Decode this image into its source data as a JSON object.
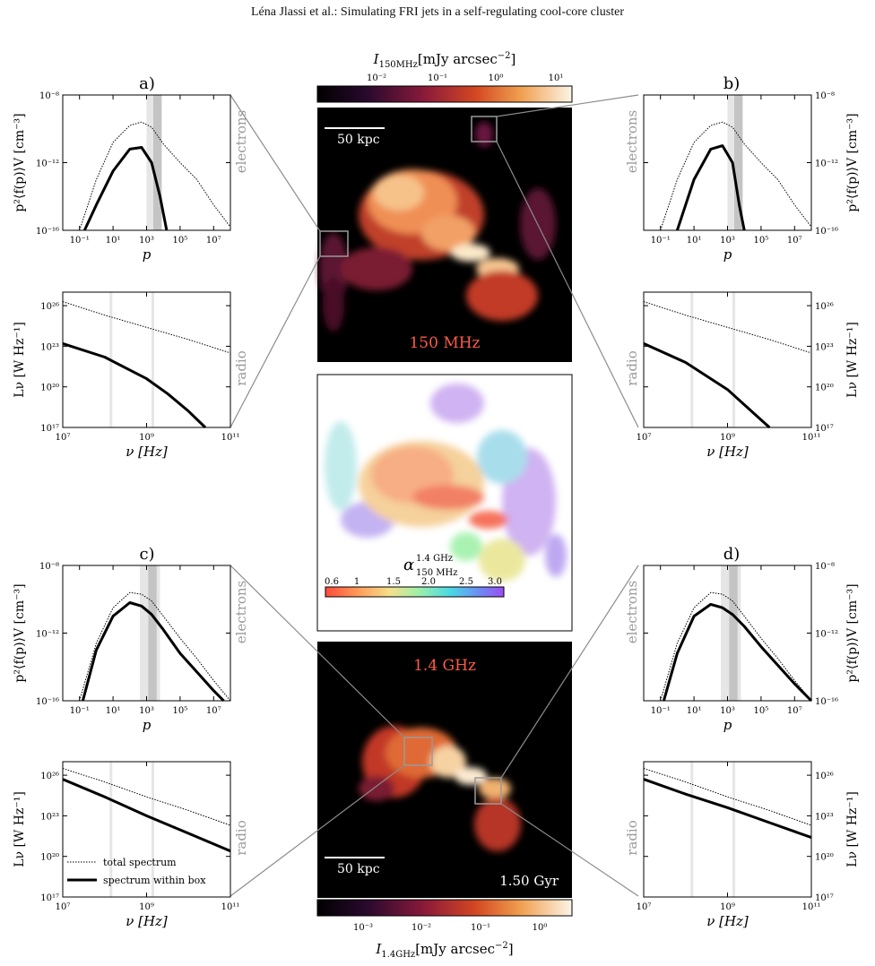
{
  "header": "Léna Jlassi et al.: Simulating FRI jets in a self-regulating cool-core cluster",
  "colorbar_top": {
    "label": "I_150MHz [mJy arcsec^-2]",
    "label_main": "I",
    "label_sub": "150MHz",
    "label_units": "[mJy arcsec",
    "label_exp": "−2",
    "label_close": "]",
    "ticks": [
      "10⁻²",
      "10⁻¹",
      "10⁰",
      "10¹"
    ]
  },
  "colorbar_bottom": {
    "label_main": "I",
    "label_sub": "1.4GHz",
    "label_units": "[mJy arcsec",
    "label_exp": "−2",
    "label_close": "]",
    "ticks": [
      "10⁻³",
      "10⁻²",
      "10⁻¹",
      "10⁰"
    ]
  },
  "center": {
    "map_top": {
      "scale_label": "50 kpc",
      "freq_label": "150 MHz"
    },
    "spectral_map": {
      "label_main": "α",
      "label_sup": "1.4 GHz",
      "label_sub": "150 MHz",
      "ticks": [
        "0.6",
        "1",
        "1.5",
        "2.0",
        "2.5",
        "3.0"
      ]
    },
    "map_bottom": {
      "scale_label": "50 kpc",
      "freq_label": "1.4 GHz",
      "time_label": "1.50 Gyr"
    }
  },
  "panels": {
    "a": {
      "letter": "a)"
    },
    "b": {
      "letter": "b)"
    },
    "c": {
      "letter": "c)"
    },
    "d": {
      "letter": "d)"
    }
  },
  "axes": {
    "electron_ylabel": "p²⟨f(p)⟩V [cm⁻³]",
    "electron_xlabel": "p",
    "electron_side": "electrons",
    "electron_yticks": [
      "10⁻⁸",
      "10⁻¹²",
      "10⁻¹⁶"
    ],
    "electron_xticks": [
      "10⁻¹",
      "10¹",
      "10³",
      "10⁵",
      "10⁷"
    ],
    "radio_ylabel": "Lν [W Hz⁻¹]",
    "radio_xlabel": "ν [Hz]",
    "radio_side": "radio",
    "radio_yticks": [
      "10²⁶",
      "10²³",
      "10²⁰",
      "10¹⁷"
    ],
    "radio_xticks": [
      "10⁷",
      "10⁹",
      "10¹¹"
    ]
  },
  "legend": {
    "total": "total spectrum",
    "box": "spectrum within box"
  },
  "colors": {
    "black_bg": "#000000",
    "curve": "#000000",
    "band_light": "#e6e6e6",
    "band_dark": "#c4c4c4",
    "connector": "#8c8c8c"
  },
  "chart_data": [
    {
      "panel": "a",
      "type": "line",
      "subplot": "electrons",
      "xlim_log10": [
        -2,
        8
      ],
      "ylim_log10": [
        -16,
        -8
      ],
      "series": [
        {
          "name": "total spectrum",
          "x_log10": [
            -1,
            0,
            1,
            2,
            2.7,
            3.3,
            4,
            5,
            6,
            7,
            8
          ],
          "y_log10": [
            -16.2,
            -13,
            -10.8,
            -9.8,
            -9.6,
            -9.9,
            -10.9,
            -12,
            -13,
            -14.5,
            -15.8
          ]
        },
        {
          "name": "spectrum within box",
          "x_log10": [
            -0.7,
            0,
            1,
            2,
            2.7,
            3.3,
            3.8,
            4.2
          ],
          "y_log10": [
            -16.2,
            -14.5,
            -12.5,
            -11.2,
            -11.1,
            -12.0,
            -14.0,
            -16.2
          ]
        }
      ],
      "bands_log10": [
        [
          3.0,
          3.9
        ],
        [
          3.4,
          3.9
        ]
      ]
    },
    {
      "panel": "a",
      "type": "line",
      "subplot": "radio",
      "xlim_log10": [
        7,
        11
      ],
      "ylim_log10": [
        17,
        27
      ],
      "series": [
        {
          "name": "total spectrum",
          "x_log10": [
            7,
            8,
            9,
            10,
            11
          ],
          "y_log10": [
            26.3,
            25.3,
            24.4,
            23.5,
            22.5
          ]
        },
        {
          "name": "spectrum within box",
          "x_log10": [
            7,
            8,
            9,
            9.5,
            10,
            10.4
          ],
          "y_log10": [
            23.2,
            22.2,
            20.6,
            19.5,
            18.2,
            17
          ]
        }
      ],
      "bands_log10": [
        [
          8.15,
          8.15
        ],
        [
          9.15,
          9.15
        ]
      ]
    },
    {
      "panel": "b",
      "type": "line",
      "subplot": "electrons",
      "xlim_log10": [
        -2,
        8
      ],
      "ylim_log10": [
        -16,
        -8
      ],
      "series": [
        {
          "name": "total spectrum",
          "x_log10": [
            -1,
            0,
            1,
            2,
            2.7,
            3.3,
            4,
            5,
            6,
            7,
            8
          ],
          "y_log10": [
            -16.2,
            -13,
            -10.8,
            -9.8,
            -9.6,
            -9.9,
            -10.9,
            -12,
            -13,
            -14.5,
            -15.8
          ]
        },
        {
          "name": "spectrum within box",
          "x_log10": [
            0,
            1,
            2,
            2.7,
            3.3,
            3.7,
            4.0
          ],
          "y_log10": [
            -16.2,
            -13.0,
            -11.2,
            -11.0,
            -12.0,
            -14.5,
            -16.2
          ]
        }
      ],
      "bands_log10": [
        [
          3.0,
          3.9
        ],
        [
          3.4,
          3.9
        ]
      ]
    },
    {
      "panel": "b",
      "type": "line",
      "subplot": "radio",
      "xlim_log10": [
        7,
        11
      ],
      "ylim_log10": [
        17,
        27
      ],
      "series": [
        {
          "name": "total spectrum",
          "x_log10": [
            7,
            8,
            9,
            10,
            11
          ],
          "y_log10": [
            26.3,
            25.3,
            24.4,
            23.5,
            22.5
          ]
        },
        {
          "name": "spectrum within box",
          "x_log10": [
            7,
            8,
            9,
            9.5,
            10
          ],
          "y_log10": [
            23.2,
            21.8,
            19.8,
            18.4,
            17
          ]
        }
      ],
      "bands_log10": [
        [
          8.15,
          8.15
        ],
        [
          9.15,
          9.15
        ]
      ]
    },
    {
      "panel": "c",
      "type": "line",
      "subplot": "electrons",
      "xlim_log10": [
        -2,
        8
      ],
      "ylim_log10": [
        -16,
        -8
      ],
      "series": [
        {
          "name": "total spectrum",
          "x_log10": [
            -1,
            0,
            1,
            2,
            2.7,
            3.3,
            4,
            5,
            6,
            7,
            8
          ],
          "y_log10": [
            -16.2,
            -12.6,
            -10.5,
            -9.6,
            -9.7,
            -10.1,
            -11.0,
            -12.3,
            -13.5,
            -14.8,
            -16.0
          ]
        },
        {
          "name": "spectrum within box",
          "x_log10": [
            -0.8,
            0,
            1,
            2,
            2.7,
            3.3,
            4,
            5,
            6,
            7,
            7.6
          ],
          "y_log10": [
            -16.2,
            -13.0,
            -11.0,
            -10.2,
            -10.4,
            -10.9,
            -11.8,
            -13.2,
            -14.3,
            -15.4,
            -16.2
          ]
        }
      ],
      "bands_log10": [
        [
          2.6,
          3.8
        ],
        [
          3.1,
          3.6
        ]
      ]
    },
    {
      "panel": "c",
      "type": "line",
      "subplot": "radio",
      "xlim_log10": [
        7,
        11
      ],
      "ylim_log10": [
        17,
        27
      ],
      "series": [
        {
          "name": "total spectrum",
          "x_log10": [
            7,
            8,
            9,
            10,
            11
          ],
          "y_log10": [
            26.5,
            25.5,
            24.4,
            23.4,
            22.3
          ]
        },
        {
          "name": "spectrum within box",
          "x_log10": [
            7,
            8,
            9,
            10,
            11
          ],
          "y_log10": [
            25.7,
            24.4,
            23.0,
            21.7,
            20.4
          ]
        }
      ],
      "bands_log10": [
        [
          8.15,
          8.15
        ],
        [
          9.15,
          9.15
        ]
      ]
    },
    {
      "panel": "d",
      "type": "line",
      "subplot": "electrons",
      "xlim_log10": [
        -2,
        8
      ],
      "ylim_log10": [
        -16,
        -8
      ],
      "series": [
        {
          "name": "total spectrum",
          "x_log10": [
            -1,
            0,
            1,
            2,
            2.7,
            3.3,
            4,
            5,
            6,
            7,
            8
          ],
          "y_log10": [
            -16.2,
            -12.6,
            -10.5,
            -9.6,
            -9.7,
            -10.1,
            -11.0,
            -12.3,
            -13.5,
            -14.8,
            -16.0
          ]
        },
        {
          "name": "spectrum within box",
          "x_log10": [
            -0.8,
            0,
            1,
            2,
            2.7,
            3.3,
            4,
            5,
            6,
            7,
            8
          ],
          "y_log10": [
            -16.2,
            -13.2,
            -11.0,
            -10.3,
            -10.5,
            -10.9,
            -11.6,
            -12.8,
            -13.9,
            -15.0,
            -16.1
          ]
        }
      ],
      "bands_log10": [
        [
          2.6,
          3.8
        ],
        [
          3.1,
          3.6
        ]
      ]
    },
    {
      "panel": "d",
      "type": "line",
      "subplot": "radio",
      "xlim_log10": [
        7,
        11
      ],
      "ylim_log10": [
        17,
        27
      ],
      "series": [
        {
          "name": "total spectrum",
          "x_log10": [
            7,
            8,
            9,
            10,
            11
          ],
          "y_log10": [
            26.5,
            25.5,
            24.4,
            23.4,
            22.3
          ]
        },
        {
          "name": "spectrum within box",
          "x_log10": [
            7,
            8,
            9,
            10,
            11
          ],
          "y_log10": [
            25.7,
            24.6,
            23.6,
            22.5,
            21.4
          ]
        }
      ],
      "bands_log10": [
        [
          8.15,
          8.15
        ],
        [
          9.15,
          9.15
        ]
      ]
    }
  ]
}
